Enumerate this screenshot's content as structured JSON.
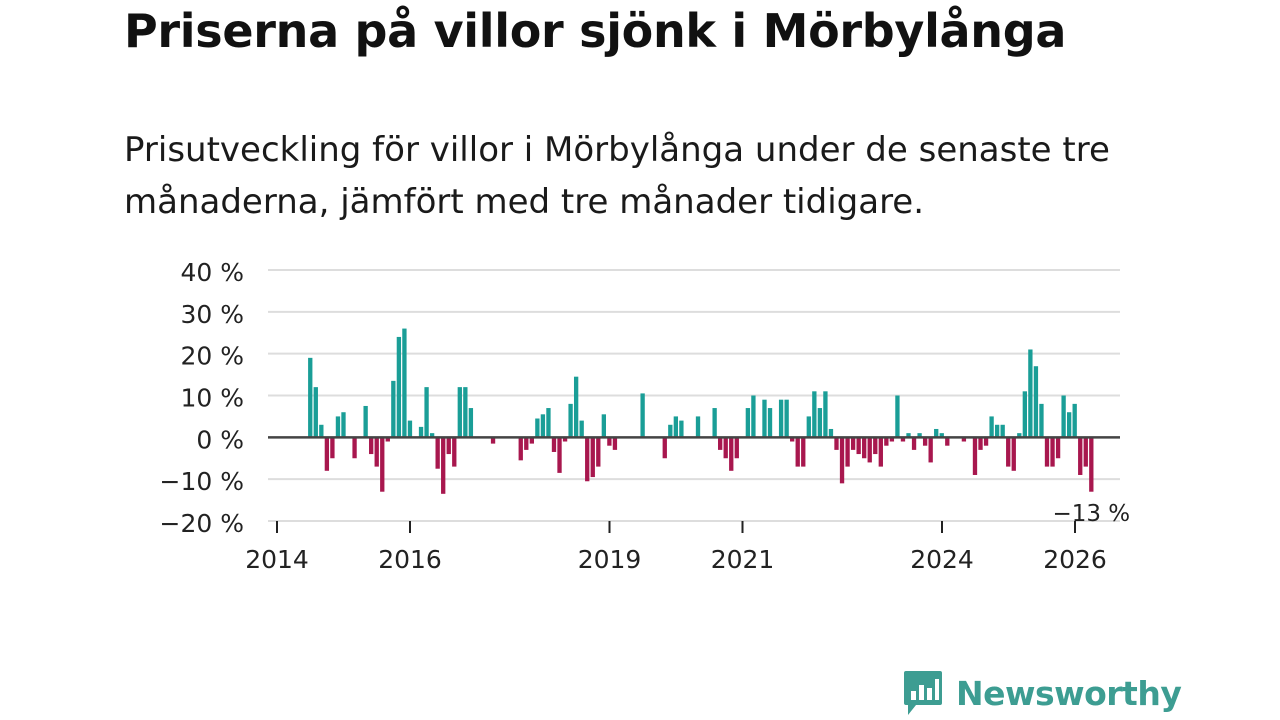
{
  "title": "Priserna på villor sjönk i Mörbylånga",
  "subtitle": "Prisutveckling för villor i Mörbylånga under de senaste tre månaderna, jämfört med tre månader tidigare.",
  "colors": {
    "positive": "#1a9e97",
    "negative": "#a8174e",
    "grid": "#dddddd",
    "axis": "#444444",
    "brand": "#3d9d92"
  },
  "brand": {
    "name": "Newsworthy",
    "icon": "bar-chart-speech-bubble-icon"
  },
  "chart_data": {
    "type": "bar",
    "title": "Priserna på villor sjönk i Mörbylånga",
    "ylabel": "",
    "xlabel": "",
    "ylim": [
      -20,
      40
    ],
    "yticks": [
      40,
      30,
      20,
      10,
      0,
      -10,
      -20
    ],
    "ytick_labels": [
      "40 %",
      "30 %",
      "20 %",
      "10 %",
      "0 %",
      "−10 %",
      "−20 %"
    ],
    "xlim": [
      2014.0,
      2026.5
    ],
    "xticks": [
      2014,
      2016,
      2019,
      2021,
      2024,
      2026
    ],
    "xtick_labels": [
      "2014",
      "2016",
      "2019",
      "2021",
      "2024",
      "2026"
    ],
    "start_year": 2014.5,
    "step_years": 0.0833,
    "values": [
      19,
      12,
      3,
      -8,
      -5,
      5,
      6,
      0,
      -5,
      0,
      7.5,
      -4,
      -7,
      -13,
      -1,
      13.5,
      24,
      26,
      4,
      0,
      2.5,
      12,
      1,
      -7.5,
      -13.5,
      -4,
      -7,
      12,
      12,
      7,
      0,
      0,
      0,
      -1.5,
      0,
      0,
      0,
      0,
      -5.5,
      -3,
      -1.5,
      4.5,
      5.5,
      7,
      -3.5,
      -8.5,
      -1,
      8,
      14.5,
      4,
      -10.5,
      -9.5,
      -7,
      5.5,
      -2,
      -3,
      0,
      0,
      0,
      0,
      10.5,
      0,
      0,
      0,
      -5,
      3,
      5,
      4,
      0,
      0,
      5,
      0,
      0,
      7,
      -3,
      -5,
      -8,
      -5,
      0,
      7,
      10,
      0,
      9,
      7,
      0,
      9,
      9,
      -1,
      -7,
      -7,
      5,
      11,
      7,
      11,
      2,
      -3,
      -11,
      -7,
      -3,
      -4,
      -5,
      -6,
      -4,
      -7,
      -2,
      -1,
      10,
      -1,
      1,
      -3,
      1,
      -2,
      -6,
      2,
      1,
      -2,
      0,
      0,
      -1,
      0,
      -9,
      -3,
      -2,
      5,
      3,
      3,
      -7,
      -8,
      1,
      11,
      21,
      17,
      8,
      -7,
      -7,
      -5,
      10,
      6,
      8,
      -9,
      -7,
      -13
    ],
    "annotation": {
      "label": "−13 %",
      "value": -13
    }
  }
}
